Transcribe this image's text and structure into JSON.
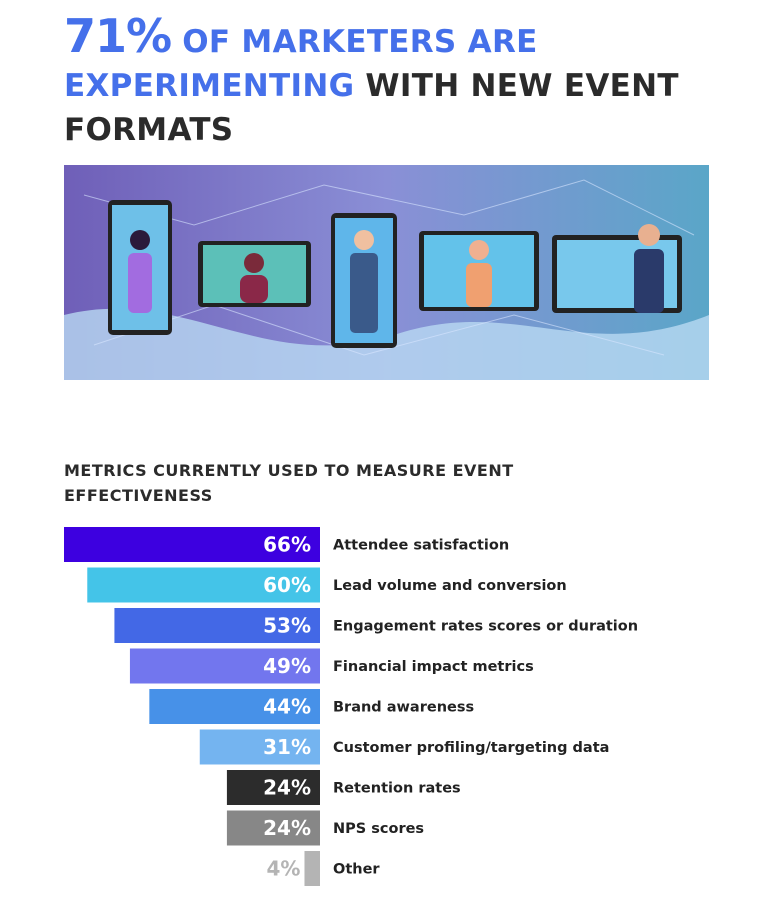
{
  "headline": {
    "stat": "71%",
    "part1": "OF MARKETERS ARE",
    "part2": "EXPERIMENTING",
    "part3": "WITH NEW EVENT FORMATS"
  },
  "colors": {
    "accent": "#4570ea",
    "text": "#2b2b2b"
  },
  "chart_data": {
    "type": "bar",
    "orientation": "horizontal",
    "title": "METRICS CURRENTLY USED TO MEASURE EVENT EFFECTIVENESS",
    "categories": [
      "Attendee satisfaction",
      "Lead volume and conversion",
      "Engagement rates scores or duration",
      "Financial impact metrics",
      "Brand awareness",
      "Customer profiling/targeting data",
      "Retention rates",
      "NPS scores",
      "Other"
    ],
    "values": [
      66,
      60,
      53,
      49,
      44,
      31,
      24,
      24,
      4
    ],
    "labels": [
      "66%",
      "60%",
      "53%",
      "49%",
      "44%",
      "31%",
      "24%",
      "24%",
      "4%"
    ],
    "bar_colors": [
      "#3d00e0",
      "#44c4e8",
      "#4368e6",
      "#7276ee",
      "#4791e8",
      "#74b4f0",
      "#2c2c2c",
      "#878787",
      "#b4b4b4"
    ],
    "label_colors": [
      "#ffffff",
      "#ffffff",
      "#ffffff",
      "#ffffff",
      "#ffffff",
      "#ffffff",
      "#ffffff",
      "#ffffff",
      "#b4b4b4"
    ],
    "unit": "%"
  }
}
